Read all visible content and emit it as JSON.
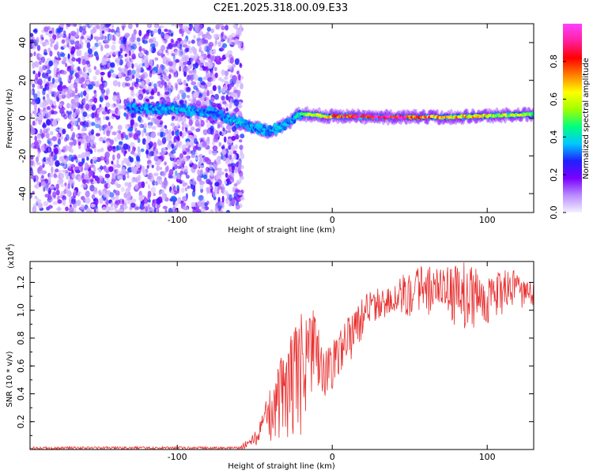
{
  "title": "C2E1.2025.318.00.09.E33",
  "chart_data": [
    {
      "type": "heatmap",
      "xlabel": "Height of straight line (km)",
      "ylabel": "Frequency (Hz)",
      "xlim": [
        -195,
        130
      ],
      "ylim": [
        -50,
        50
      ],
      "x_ticks": [
        -100,
        0,
        100
      ],
      "x_tick_labels": [
        "-100",
        "0",
        "100"
      ],
      "y_ticks": [
        -40,
        -20,
        0,
        20,
        40
      ],
      "y_tick_labels": [
        "-40",
        "-20",
        "0",
        "20",
        "40"
      ],
      "colorbar": {
        "label": "Normalized spectral amplitude",
        "range": [
          0,
          1
        ],
        "ticks": [
          0,
          0.2,
          0.4,
          0.6,
          0.8
        ],
        "tick_labels": [
          "0.0",
          "0.2",
          "0.4",
          "0.6",
          "0.8"
        ],
        "colormap": [
          "#f5f0ff",
          "#b98cff",
          "#7a00ff",
          "#2020ff",
          "#00c8ff",
          "#00ff80",
          "#a0ff00",
          "#ffff00",
          "#ff8000",
          "#ff0000",
          "#ff20a0",
          "#ff40ff"
        ]
      },
      "noise_region": {
        "x_start": -195,
        "x_end": -58,
        "amplitude": [
          0.05,
          0.35
        ]
      },
      "signal_track": [
        {
          "x": -132,
          "f": 5,
          "a": 0.3
        },
        {
          "x": -120,
          "f": 5,
          "a": 0.35
        },
        {
          "x": -105,
          "f": 5,
          "a": 0.4
        },
        {
          "x": -90,
          "f": 4,
          "a": 0.35
        },
        {
          "x": -78,
          "f": 3,
          "a": 0.3
        },
        {
          "x": -68,
          "f": 0,
          "a": 0.35
        },
        {
          "x": -58,
          "f": -3,
          "a": 0.4
        },
        {
          "x": -50,
          "f": -5,
          "a": 0.35
        },
        {
          "x": -42,
          "f": -7,
          "a": 0.35
        },
        {
          "x": -34,
          "f": -5,
          "a": 0.4
        },
        {
          "x": -27,
          "f": -2,
          "a": 0.35
        },
        {
          "x": -22,
          "f": 2,
          "a": 0.45
        },
        {
          "x": -15,
          "f": 2,
          "a": 0.6
        },
        {
          "x": -5,
          "f": 1,
          "a": 0.7
        },
        {
          "x": 10,
          "f": 1,
          "a": 0.85
        },
        {
          "x": 30,
          "f": 0.5,
          "a": 1.0
        },
        {
          "x": 50,
          "f": 0.5,
          "a": 0.9
        },
        {
          "x": 70,
          "f": 0.5,
          "a": 0.75
        },
        {
          "x": 90,
          "f": 1,
          "a": 0.7
        },
        {
          "x": 110,
          "f": 1.5,
          "a": 0.6
        },
        {
          "x": 130,
          "f": 2,
          "a": 0.55
        }
      ]
    },
    {
      "type": "line",
      "xlabel": "Height of straight line (km)",
      "ylabel": "SNR (10 * v/v)",
      "y_multiplier_label": "(x10",
      "y_multiplier_exponent": "4",
      "y_multiplier_suffix": ")",
      "xlim": [
        -195,
        130
      ],
      "ylim": [
        0,
        1.35
      ],
      "x_ticks": [
        -100,
        0,
        100
      ],
      "x_tick_labels": [
        "-100",
        "0",
        "100"
      ],
      "y_ticks": [
        0.2,
        0.4,
        0.6,
        0.8,
        1.0,
        1.2
      ],
      "y_tick_labels": [
        "0.2",
        "0.4",
        "0.6",
        "0.8",
        "1.0",
        "1.2"
      ],
      "line_color": "#e83030",
      "series_envelope": [
        {
          "x": -195,
          "low": 0.0,
          "high": 0.02
        },
        {
          "x": -60,
          "low": 0.0,
          "high": 0.02
        },
        {
          "x": -48,
          "low": 0.02,
          "high": 0.15
        },
        {
          "x": -40,
          "low": 0.05,
          "high": 0.45
        },
        {
          "x": -30,
          "low": 0.05,
          "high": 0.75
        },
        {
          "x": -20,
          "low": 0.1,
          "high": 1.0
        },
        {
          "x": -12,
          "low": 0.2,
          "high": 1.0
        },
        {
          "x": -5,
          "low": 0.35,
          "high": 0.7
        },
        {
          "x": 5,
          "low": 0.5,
          "high": 0.85
        },
        {
          "x": 15,
          "low": 0.7,
          "high": 1.05
        },
        {
          "x": 25,
          "low": 0.9,
          "high": 1.15
        },
        {
          "x": 40,
          "low": 0.95,
          "high": 1.2
        },
        {
          "x": 52,
          "low": 0.95,
          "high": 1.35
        },
        {
          "x": 70,
          "low": 0.95,
          "high": 1.3
        },
        {
          "x": 85,
          "low": 0.85,
          "high": 1.35
        },
        {
          "x": 100,
          "low": 0.9,
          "high": 1.25
        },
        {
          "x": 115,
          "low": 1.0,
          "high": 1.3
        },
        {
          "x": 130,
          "low": 1.0,
          "high": 1.2
        }
      ]
    }
  ]
}
